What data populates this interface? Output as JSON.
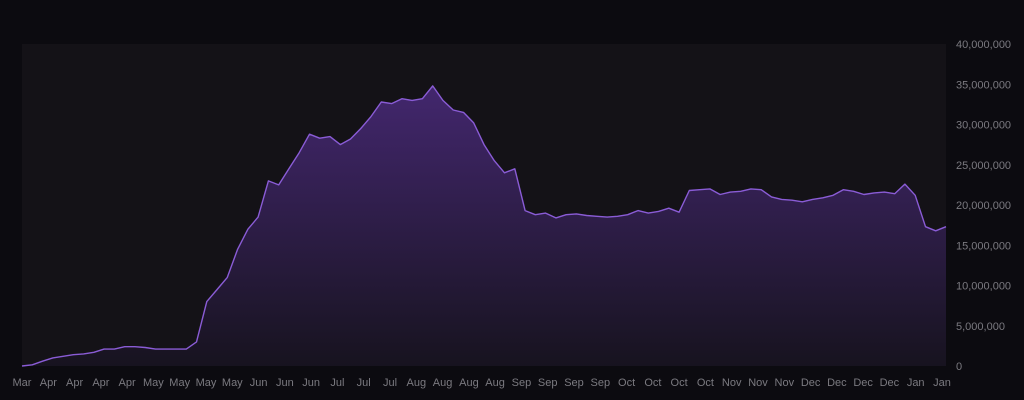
{
  "chart_data": {
    "type": "area",
    "title": "",
    "xlabel": "",
    "ylabel": "",
    "ylim": [
      0,
      40000000
    ],
    "y_ticks": [
      "0",
      "5,000,000",
      "10,000,000",
      "15,000,000",
      "20,000,000",
      "25,000,000",
      "30,000,000",
      "35,000,000",
      "40,000,000"
    ],
    "y_tick_values": [
      0,
      5000000,
      10000000,
      15000000,
      20000000,
      25000000,
      30000000,
      35000000,
      40000000
    ],
    "x_tick_labels": [
      "Mar",
      "Apr",
      "Apr",
      "Apr",
      "Apr",
      "May",
      "May",
      "May",
      "May",
      "Jun",
      "Jun",
      "Jun",
      "Jul",
      "Jul",
      "Jul",
      "Aug",
      "Aug",
      "Aug",
      "Aug",
      "Sep",
      "Sep",
      "Sep",
      "Sep",
      "Oct",
      "Oct",
      "Oct",
      "Oct",
      "Nov",
      "Nov",
      "Nov",
      "Dec",
      "Dec",
      "Dec",
      "Dec",
      "Jan",
      "Jan"
    ],
    "grid": false,
    "legend": "none",
    "colors": {
      "line": "#8a5cd6",
      "fill_top": "#43276e",
      "fill_bottom": "#17131f",
      "plot_bg": "#141217",
      "background": "#0c0b10",
      "tick_text": "#7b7a80"
    },
    "series": [
      {
        "values": [
          0,
          150000,
          600000,
          1000000,
          1200000,
          1400000,
          1500000,
          1700000,
          2100000,
          2100000,
          2400000,
          2400000,
          2300000,
          2100000,
          2100000,
          2100000,
          2100000,
          3000000,
          8000000,
          9500000,
          11000000,
          14500000,
          17000000,
          18500000,
          23000000,
          22500000,
          24500000,
          26500000,
          28800000,
          28300000,
          28500000,
          27500000,
          28200000,
          29500000,
          31000000,
          32800000,
          32600000,
          33200000,
          33000000,
          33200000,
          34800000,
          33000000,
          31800000,
          31500000,
          30200000,
          27500000,
          25500000,
          24000000,
          24500000,
          19300000,
          18800000,
          19000000,
          18400000,
          18800000,
          18900000,
          18700000,
          18600000,
          18500000,
          18600000,
          18800000,
          19300000,
          19000000,
          19200000,
          19600000,
          19100000,
          21800000,
          21900000,
          22000000,
          21300000,
          21600000,
          21700000,
          22000000,
          21900000,
          21000000,
          20700000,
          20600000,
          20400000,
          20700000,
          20900000,
          21200000,
          21900000,
          21700000,
          21300000,
          21500000,
          21600000,
          21400000,
          22600000,
          21200000,
          17300000,
          16800000,
          17300000
        ]
      }
    ]
  }
}
